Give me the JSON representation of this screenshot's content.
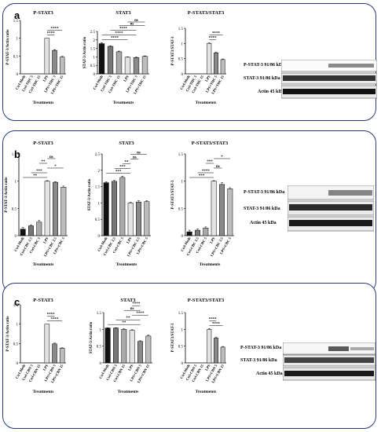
{
  "panels": [
    {
      "label": "a",
      "blots": {
        "rows": [
          "P-STAT-3 91/86 kDa",
          "STAT-3 91/86 kDa",
          "Actin 45 kDa"
        ]
      }
    },
    {
      "label": "b",
      "blots": {
        "rows": [
          "P-STAT-3 91/86 kDa",
          "STAT-3 91/86 kDa",
          "Actin 45 kDa"
        ]
      }
    },
    {
      "label": "c",
      "blots": {
        "rows": [
          "P-STAT-3 91/86 kDa",
          "STAT-3 91/86 kDa",
          "Actin 45 kDa"
        ]
      }
    }
  ],
  "chart_data": [
    {
      "id": "a1",
      "type": "bar",
      "title": "P-STAT3",
      "ylabel": "P-STAT-3/Actin ratio",
      "xlabel": "Treatments",
      "categories": [
        "Ctrl-Meth",
        "Ctrl-THC 5",
        "Ctrl-THC 15",
        "LPS",
        "LPS+THC 5",
        "LPS+THC 15"
      ],
      "values": [
        0,
        0,
        0,
        1.0,
        0.66,
        0.47
      ],
      "ylim": [
        0,
        1.5
      ],
      "errors": [
        0,
        0,
        0,
        0,
        0.02,
        0.02
      ],
      "brackets": [
        {
          "from": 3,
          "to": 4,
          "text": "****"
        },
        {
          "from": 3,
          "to": 5,
          "text": "****"
        }
      ]
    },
    {
      "id": "a2",
      "type": "bar",
      "title": "STAT3",
      "ylabel": "STAT-3/Actin ratio",
      "xlabel": "Treatments",
      "categories": [
        "Ctrl-Meth",
        "Ctrl-THC 5",
        "Ctrl-THC 15",
        "LPS",
        "LPS+THC 5",
        "LPS+THC 15"
      ],
      "values": [
        1.78,
        1.62,
        1.3,
        0.98,
        0.96,
        1.03
      ],
      "ylim": [
        0,
        2.5
      ],
      "errors": [
        0.05,
        0.03,
        0.04,
        0.02,
        0.03,
        0.03
      ],
      "brackets": [
        {
          "from": 0,
          "to": 3,
          "text": "****"
        },
        {
          "from": 0,
          "to": 4,
          "text": "****"
        },
        {
          "from": 1,
          "to": 4,
          "text": "****"
        },
        {
          "from": 2,
          "to": 5,
          "text": "ns"
        },
        {
          "from": 3,
          "to": 5,
          "text": "ns"
        }
      ]
    },
    {
      "id": "a3",
      "type": "bar",
      "title": "P-STAT3/STAT3",
      "ylabel": "P-STAT3/STAT-3",
      "xlabel": "Treatments",
      "categories": [
        "Ctrl-Meth",
        "Ctrl-THC 5",
        "Ctrl-THC 15",
        "LPS",
        "LPS+THC 5",
        "LPS+THC 15"
      ],
      "values": [
        0,
        0,
        0,
        1.0,
        0.69,
        0.47
      ],
      "ylim": [
        0,
        1.5
      ],
      "errors": [
        0,
        0,
        0,
        0.02,
        0.03,
        0.02
      ],
      "brackets": [
        {
          "from": 3,
          "to": 4,
          "text": "****"
        },
        {
          "from": 3,
          "to": 5,
          "text": "****"
        }
      ]
    },
    {
      "id": "b1",
      "type": "bar",
      "title": "P-STAT3",
      "ylabel": "P-STAT-3/Actin ratio",
      "xlabel": "Treatments",
      "categories": [
        "Ctrl-Meth",
        "Ctrl-CBC 2.5",
        "Ctrl-CBC 5",
        "LPS",
        "LPS+CBC 2.5",
        "LPS+CBC 5"
      ],
      "values": [
        0.12,
        0.18,
        0.25,
        1.0,
        0.98,
        0.89
      ],
      "ylim": [
        0,
        1.5
      ],
      "errors": [
        0.03,
        0.02,
        0.03,
        0.01,
        0.01,
        0.02
      ],
      "brackets": [
        {
          "from": 0,
          "to": 3,
          "text": "**"
        },
        {
          "from": 1,
          "to": 3,
          "text": "***"
        },
        {
          "from": 3,
          "to": 5,
          "text": "*"
        },
        {
          "from": 2,
          "to": 3,
          "text": "**"
        },
        {
          "from": 3,
          "to": 4,
          "text": "ns"
        }
      ]
    },
    {
      "id": "b2",
      "type": "bar",
      "title": "STAT3",
      "ylabel": "STAT-3/Actin ratio",
      "xlabel": "Treatments",
      "categories": [
        "Ctrl-Meth",
        "Ctrl-CBC 2.5",
        "Ctrl-CBC 5",
        "LPS",
        "LPS+CBC 2.5",
        "LPS+CBC 5"
      ],
      "values": [
        1.62,
        1.66,
        1.78,
        1.0,
        1.03,
        1.04
      ],
      "ylim": [
        0,
        2.5
      ],
      "errors": [
        0.03,
        0.03,
        0.04,
        0.02,
        0.04,
        0.03
      ],
      "brackets": [
        {
          "from": 0,
          "to": 3,
          "text": "***"
        },
        {
          "from": 1,
          "to": 3,
          "text": "***"
        },
        {
          "from": 2,
          "to": 3,
          "text": "**"
        },
        {
          "from": 3,
          "to": 4,
          "text": "ns"
        },
        {
          "from": 3,
          "to": 5,
          "text": "ns"
        }
      ]
    },
    {
      "id": "b3",
      "type": "bar",
      "title": "P-STAT3/STAT3",
      "ylabel": "P-STAT3/STAT-3",
      "xlabel": "Treatments",
      "categories": [
        "Ctrl-Meth",
        "Ctrl-CBC 2.5",
        "Ctrl-CBC 5",
        "LPS",
        "LPS+CBC 2.5",
        "LPS+CBC 5"
      ],
      "values": [
        0.07,
        0.1,
        0.14,
        1.0,
        0.94,
        0.86
      ],
      "ylim": [
        0,
        1.5
      ],
      "errors": [
        0.03,
        0.02,
        0.02,
        0.01,
        0.03,
        0.02
      ],
      "brackets": [
        {
          "from": 0,
          "to": 3,
          "text": "***"
        },
        {
          "from": 1,
          "to": 3,
          "text": "****"
        },
        {
          "from": 3,
          "to": 4,
          "text": "ns"
        },
        {
          "from": 2,
          "to": 3,
          "text": "***"
        },
        {
          "from": 3,
          "to": 5,
          "text": "*"
        }
      ]
    },
    {
      "id": "c1",
      "type": "bar",
      "title": "P-STAT3",
      "ylabel": "P-STAT-3/Actin ratio",
      "xlabel": "Treatments",
      "categories": [
        "Ctrl-Meth",
        "Ctrl-CBN 5",
        "Ctrl-CBN 15",
        "LPS",
        "LPS+CBN 5",
        "LPS+CBN 15"
      ],
      "values": [
        0,
        0,
        0,
        1.0,
        0.49,
        0.38
      ],
      "ylim": [
        0,
        1.5
      ],
      "errors": [
        0,
        0,
        0,
        0,
        0.02,
        0.01
      ],
      "brackets": [
        {
          "from": 3,
          "to": 5,
          "text": "****"
        },
        {
          "from": 3,
          "to": 4,
          "text": "****"
        }
      ]
    },
    {
      "id": "c2",
      "type": "bar",
      "title": "STAT3",
      "ylabel": "STAT-3/Actin ratio",
      "xlabel": "Treatments",
      "categories": [
        "Ctrl-Meth",
        "Ctrl-CBN 5",
        "Ctrl-CBN 15",
        "LPS",
        "LPS+CBN 5",
        "LPS+CBN 15"
      ],
      "values": [
        1.04,
        1.04,
        1.0,
        0.97,
        0.64,
        0.8
      ],
      "ylim": [
        0,
        1.5
      ],
      "errors": [
        0.01,
        0.01,
        0.02,
        0.02,
        0.02,
        0.03
      ],
      "brackets": [
        {
          "from": 0,
          "to": 4,
          "text": "**"
        },
        {
          "from": 1,
          "to": 4,
          "text": "**"
        },
        {
          "from": 3,
          "to": 5,
          "text": "****"
        },
        {
          "from": 2,
          "to": 4,
          "text": "ns"
        },
        {
          "from": 3,
          "to": 4,
          "text": "****"
        }
      ]
    },
    {
      "id": "c3",
      "type": "bar",
      "title": "P-STAT3/STAT3",
      "ylabel": "P-STAT3/STAT-3",
      "xlabel": "Treatments",
      "categories": [
        "Ctrl-Meth",
        "Ctrl-CBN 5",
        "Ctrl-CBN 15",
        "LPS",
        "LPS+CBN 5",
        "LPS+CBN 15"
      ],
      "values": [
        0,
        0,
        0,
        1.0,
        0.74,
        0.47
      ],
      "ylim": [
        0,
        1.5
      ],
      "errors": [
        0,
        0,
        0,
        0.02,
        0.03,
        0.02
      ],
      "brackets": [
        {
          "from": 3,
          "to": 5,
          "text": "****"
        },
        {
          "from": 3,
          "to": 4,
          "text": "****"
        }
      ]
    }
  ],
  "bar_colors": [
    "#111111",
    "#777777",
    "#a9a9a9",
    "#e3e3e3",
    "#8a8a8a",
    "#bdbdbd"
  ]
}
